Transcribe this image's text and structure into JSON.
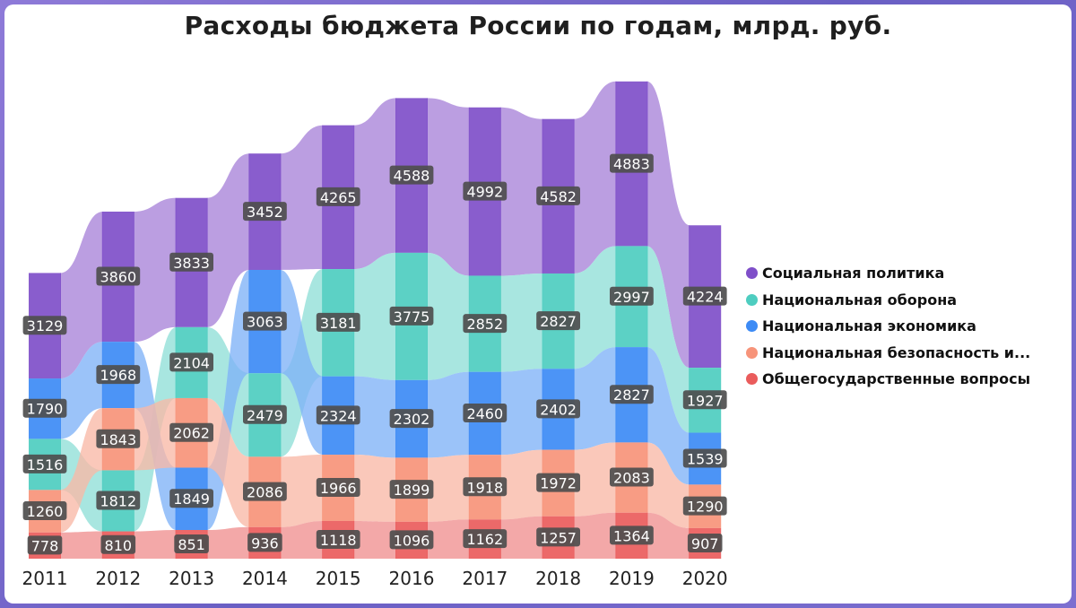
{
  "chart_data": {
    "type": "bar",
    "title": "Расходы бюджета России по годам, млрд. руб.",
    "xlabel": "",
    "ylabel": "",
    "categories": [
      "2011",
      "2012",
      "2013",
      "2014",
      "2015",
      "2016",
      "2017",
      "2018",
      "2019",
      "2020"
    ],
    "ranked": true,
    "legend_position": "right",
    "grid": false,
    "series": [
      {
        "name": "Социальная политика",
        "color": "#7f4fc9",
        "band_color": "#a883d8",
        "values": [
          3129,
          3860,
          3833,
          3452,
          4265,
          4588,
          4992,
          4582,
          4883,
          4224
        ]
      },
      {
        "name": "Национальная оборона",
        "color": "#4ecdc0",
        "band_color": "#8fdfd7",
        "values": [
          1516,
          1812,
          2104,
          2479,
          3181,
          3775,
          2852,
          2827,
          2997,
          1927
        ]
      },
      {
        "name": "Национальная экономика",
        "color": "#3d8bf5",
        "band_color": "#7fb2f7",
        "values": [
          1790,
          1968,
          1849,
          3063,
          2324,
          2302,
          2460,
          2402,
          2827,
          1539
        ]
      },
      {
        "name": "Национальная безопасность и...",
        "color": "#f7947a",
        "band_color": "#f9b8a7",
        "values": [
          1260,
          1843,
          2062,
          2086,
          1966,
          1899,
          1918,
          1972,
          2083,
          1290
        ]
      },
      {
        "name": "Общегосударственные вопросы",
        "color": "#ea5c5c",
        "band_color": "#ef8f8f",
        "values": [
          778,
          810,
          851,
          936,
          1118,
          1096,
          1162,
          1257,
          1364,
          907
        ]
      }
    ]
  }
}
